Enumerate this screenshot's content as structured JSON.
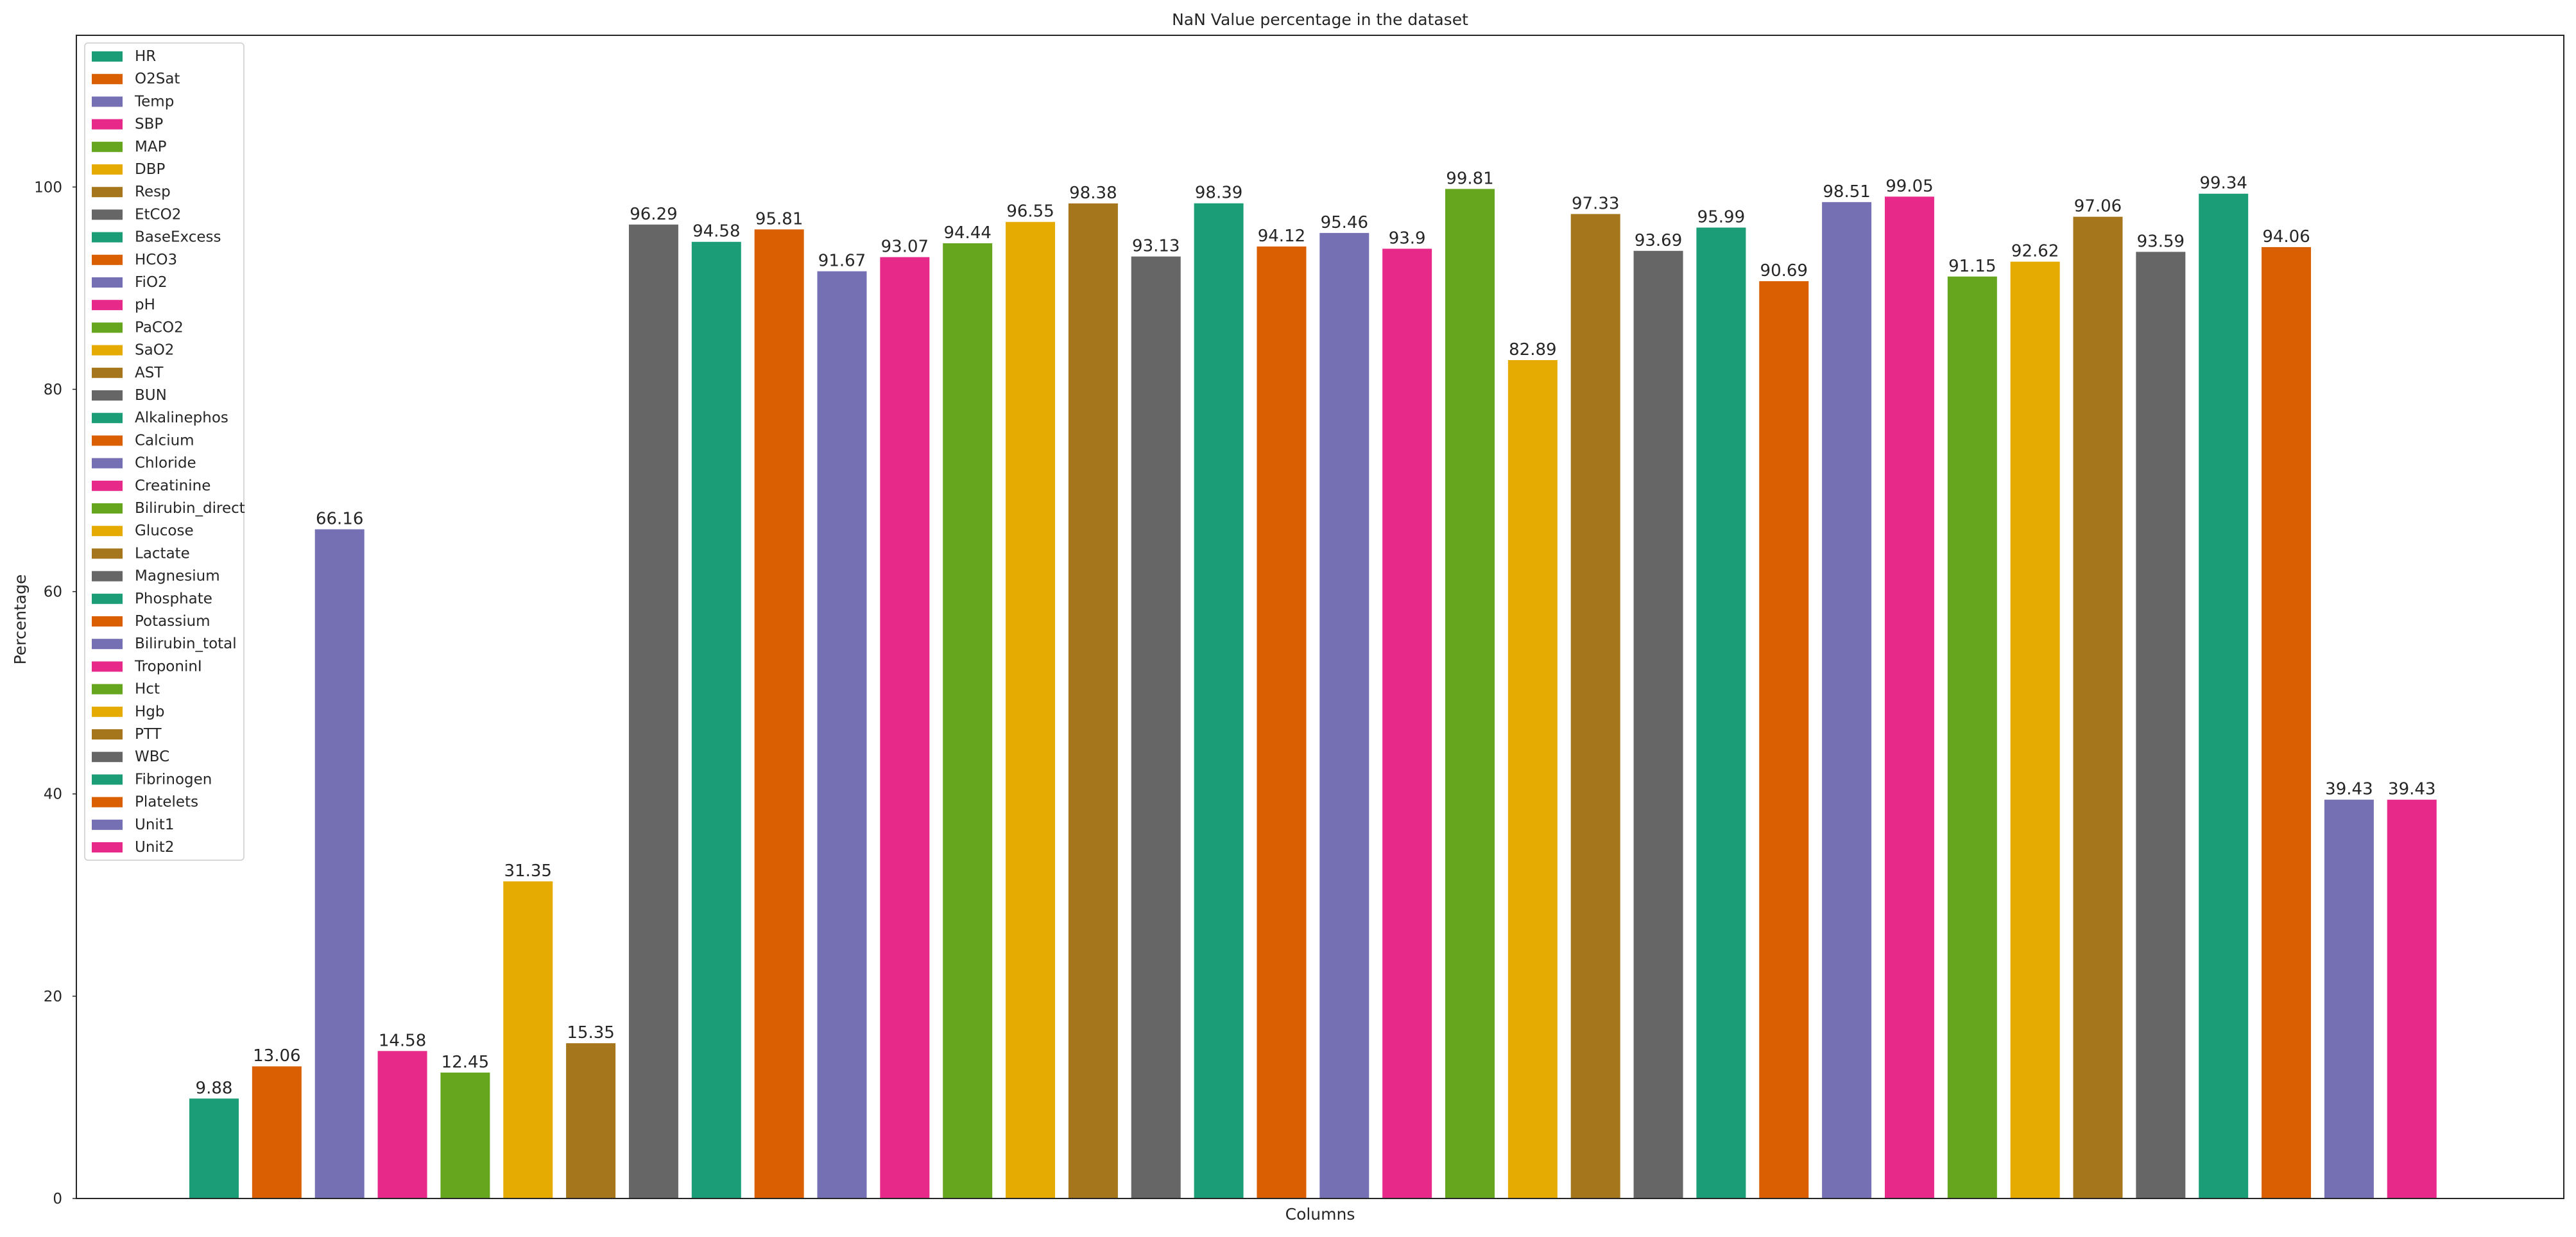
{
  "chart_data": {
    "type": "bar",
    "title": "NaN Value percentage in the dataset",
    "xlabel": "Columns",
    "ylabel": "Percentage",
    "ylim": [
      0,
      115
    ],
    "yticks": [
      0,
      20,
      40,
      60,
      80,
      100
    ],
    "grid": false,
    "legend_position": "top-left",
    "palette": [
      "#1b9e77",
      "#d95f02",
      "#7570b3",
      "#e7298a",
      "#66a61e",
      "#e6ab02",
      "#a6761d",
      "#666666"
    ],
    "categories": [
      "HR",
      "O2Sat",
      "Temp",
      "SBP",
      "MAP",
      "DBP",
      "Resp",
      "EtCO2",
      "BaseExcess",
      "HCO3",
      "FiO2",
      "pH",
      "PaCO2",
      "SaO2",
      "AST",
      "BUN",
      "Alkalinephos",
      "Calcium",
      "Chloride",
      "Creatinine",
      "Bilirubin_direct",
      "Glucose",
      "Lactate",
      "Magnesium",
      "Phosphate",
      "Potassium",
      "Bilirubin_total",
      "TroponinI",
      "Hct",
      "Hgb",
      "PTT",
      "WBC",
      "Fibrinogen",
      "Platelets",
      "Unit1",
      "Unit2"
    ],
    "values": [
      9.88,
      13.06,
      66.16,
      14.58,
      12.45,
      31.35,
      15.35,
      96.29,
      94.58,
      95.81,
      91.67,
      93.07,
      94.44,
      96.55,
      98.38,
      93.13,
      98.39,
      94.12,
      95.46,
      93.9,
      99.81,
      82.89,
      97.33,
      93.69,
      95.99,
      90.69,
      98.51,
      99.05,
      91.15,
      92.62,
      97.06,
      93.59,
      99.34,
      94.06,
      39.43,
      39.43
    ],
    "value_labels": [
      "9.88",
      "13.06",
      "66.16",
      "14.58",
      "12.45",
      "31.35",
      "15.35",
      "96.29",
      "94.58",
      "95.81",
      "91.67",
      "93.07",
      "94.44",
      "96.55",
      "98.38",
      "93.13",
      "98.39",
      "94.12",
      "95.46",
      "93.9",
      "99.81",
      "82.89",
      "97.33",
      "93.69",
      "95.99",
      "90.69",
      "98.51",
      "99.05",
      "91.15",
      "92.62",
      "97.06",
      "93.59",
      "99.34",
      "94.06",
      "39.43",
      "39.43"
    ]
  }
}
